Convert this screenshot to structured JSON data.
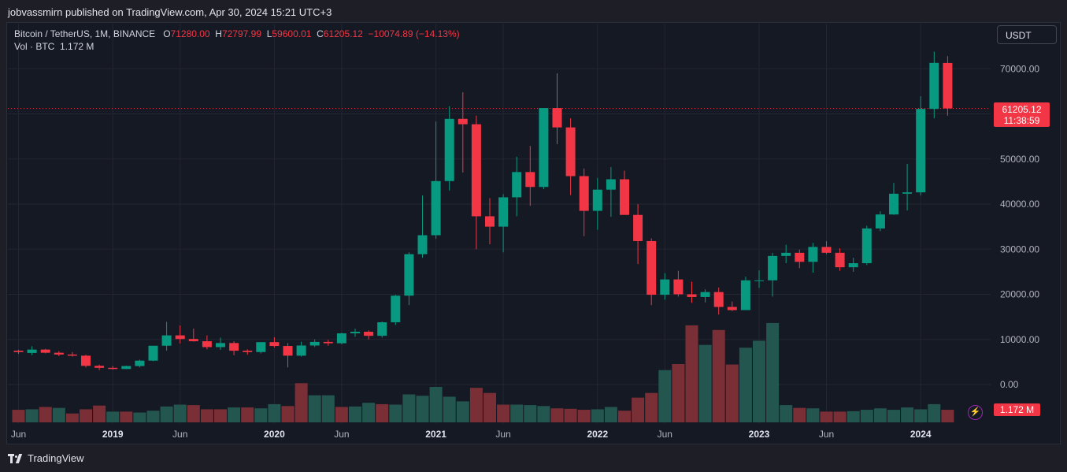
{
  "publisher": "jobvassmirn published on TradingView.com, Apr 30, 2024 15:21 UTC+3",
  "legend": {
    "symbol": "Bitcoin / TetherUS, 1M, BINANCE",
    "o_label": "O",
    "o": "71280.00",
    "h_label": "H",
    "h": "72797.99",
    "l_label": "L",
    "l": "59600.01",
    "c_label": "C",
    "c": "61205.12",
    "change": "−10074.89 (−14.13%)",
    "vol_label": "Vol · BTC",
    "vol": "1.172 M"
  },
  "currency_button": "USDT",
  "last_price": {
    "price": "61205.12",
    "countdown": "11:38:59"
  },
  "volume_tag": "1.172 M",
  "footer": "TradingView",
  "colors": {
    "up": "#089981",
    "down": "#f23645",
    "volume_up": "#22564f",
    "volume_down": "#7a2e36",
    "grid": "#232631"
  },
  "chart_data": {
    "type": "candlestick",
    "title": "Bitcoin / TetherUS, 1M, BINANCE",
    "ylim": [
      -3000,
      78000
    ],
    "y_ticks": [
      {
        "value": 70000,
        "label": "70000.00"
      },
      {
        "value": 60000,
        "label": ""
      },
      {
        "value": 50000,
        "label": "50000.00"
      },
      {
        "value": 40000,
        "label": "40000.00"
      },
      {
        "value": 30000,
        "label": "30000.00"
      },
      {
        "value": 20000,
        "label": "20000.00"
      },
      {
        "value": 10000,
        "label": "10000.00"
      },
      {
        "value": 0,
        "label": "0.00"
      }
    ],
    "x_ticks": [
      {
        "index": 0,
        "label": "Jun",
        "bold": false
      },
      {
        "index": 7,
        "label": "2019",
        "bold": true
      },
      {
        "index": 12,
        "label": "Jun",
        "bold": false
      },
      {
        "index": 19,
        "label": "2020",
        "bold": true
      },
      {
        "index": 24,
        "label": "Jun",
        "bold": false
      },
      {
        "index": 31,
        "label": "2021",
        "bold": true
      },
      {
        "index": 36,
        "label": "Jun",
        "bold": false
      },
      {
        "index": 43,
        "label": "2022",
        "bold": true
      },
      {
        "index": 48,
        "label": "Jun",
        "bold": false
      },
      {
        "index": 55,
        "label": "2023",
        "bold": true
      },
      {
        "index": 60,
        "label": "Jun",
        "bold": false
      },
      {
        "index": 67,
        "label": "2024",
        "bold": true
      }
    ],
    "candles": [
      {
        "o": 7500,
        "h": 7700,
        "l": 6800,
        "c": 7200
      },
      {
        "o": 7000,
        "h": 8500,
        "l": 6500,
        "c": 7750
      },
      {
        "o": 7750,
        "h": 7900,
        "l": 6900,
        "c": 7050
      },
      {
        "o": 7050,
        "h": 7400,
        "l": 6300,
        "c": 6650
      },
      {
        "o": 6650,
        "h": 7200,
        "l": 6200,
        "c": 6400
      },
      {
        "o": 6400,
        "h": 6600,
        "l": 3800,
        "c": 4150
      },
      {
        "o": 4150,
        "h": 4400,
        "l": 3200,
        "c": 3700
      },
      {
        "o": 3700,
        "h": 4100,
        "l": 3300,
        "c": 3450
      },
      {
        "o": 3450,
        "h": 4200,
        "l": 3400,
        "c": 4100
      },
      {
        "o": 4100,
        "h": 5500,
        "l": 3800,
        "c": 5300
      },
      {
        "o": 5300,
        "h": 8000,
        "l": 5200,
        "c": 8600
      },
      {
        "o": 8600,
        "h": 13900,
        "l": 7500,
        "c": 10900
      },
      {
        "o": 10900,
        "h": 13100,
        "l": 9100,
        "c": 10100
      },
      {
        "o": 10100,
        "h": 12400,
        "l": 9500,
        "c": 9600
      },
      {
        "o": 9600,
        "h": 10900,
        "l": 7800,
        "c": 8300
      },
      {
        "o": 8300,
        "h": 10400,
        "l": 7700,
        "c": 9200
      },
      {
        "o": 9200,
        "h": 9600,
        "l": 6500,
        "c": 7500
      },
      {
        "o": 7500,
        "h": 7800,
        "l": 6600,
        "c": 7200
      },
      {
        "o": 7200,
        "h": 9300,
        "l": 6900,
        "c": 9400
      },
      {
        "o": 9400,
        "h": 10500,
        "l": 8200,
        "c": 8550
      },
      {
        "o": 8550,
        "h": 9200,
        "l": 3800,
        "c": 6400
      },
      {
        "o": 6400,
        "h": 9500,
        "l": 6200,
        "c": 8650
      },
      {
        "o": 8650,
        "h": 10000,
        "l": 8300,
        "c": 9450
      },
      {
        "o": 9450,
        "h": 9900,
        "l": 8600,
        "c": 9150
      },
      {
        "o": 9150,
        "h": 11500,
        "l": 8900,
        "c": 11350
      },
      {
        "o": 11350,
        "h": 12400,
        "l": 10600,
        "c": 11700
      },
      {
        "o": 11700,
        "h": 12000,
        "l": 10000,
        "c": 10800
      },
      {
        "o": 10800,
        "h": 14000,
        "l": 10400,
        "c": 13800
      },
      {
        "o": 13800,
        "h": 19900,
        "l": 13200,
        "c": 19700
      },
      {
        "o": 19700,
        "h": 29300,
        "l": 17600,
        "c": 28900
      },
      {
        "o": 28900,
        "h": 41900,
        "l": 28100,
        "c": 33100
      },
      {
        "o": 33100,
        "h": 58300,
        "l": 32300,
        "c": 45100
      },
      {
        "o": 45100,
        "h": 61700,
        "l": 43000,
        "c": 58900
      },
      {
        "o": 58900,
        "h": 64800,
        "l": 47000,
        "c": 57700
      },
      {
        "o": 57700,
        "h": 59600,
        "l": 30000,
        "c": 37300
      },
      {
        "o": 37300,
        "h": 41300,
        "l": 31100,
        "c": 35000
      },
      {
        "o": 35000,
        "h": 42200,
        "l": 29300,
        "c": 41500
      },
      {
        "o": 41500,
        "h": 50500,
        "l": 37300,
        "c": 47100
      },
      {
        "o": 47100,
        "h": 52900,
        "l": 39600,
        "c": 43800
      },
      {
        "o": 43800,
        "h": 61000,
        "l": 43300,
        "c": 61300
      },
      {
        "o": 61300,
        "h": 69000,
        "l": 53300,
        "c": 57000
      },
      {
        "o": 57000,
        "h": 59000,
        "l": 42000,
        "c": 46200
      },
      {
        "o": 46200,
        "h": 47900,
        "l": 32900,
        "c": 38500
      },
      {
        "o": 38500,
        "h": 45800,
        "l": 34300,
        "c": 43200
      },
      {
        "o": 43200,
        "h": 48200,
        "l": 37200,
        "c": 45500
      },
      {
        "o": 45500,
        "h": 47400,
        "l": 37700,
        "c": 37600
      },
      {
        "o": 37600,
        "h": 40000,
        "l": 26700,
        "c": 31800
      },
      {
        "o": 31800,
        "h": 32400,
        "l": 17600,
        "c": 19900
      },
      {
        "o": 19900,
        "h": 24700,
        "l": 18800,
        "c": 23300
      },
      {
        "o": 23300,
        "h": 25200,
        "l": 19500,
        "c": 20000
      },
      {
        "o": 20000,
        "h": 22800,
        "l": 18100,
        "c": 19400
      },
      {
        "o": 19400,
        "h": 21100,
        "l": 18200,
        "c": 20500
      },
      {
        "o": 20500,
        "h": 21500,
        "l": 15500,
        "c": 17200
      },
      {
        "o": 17200,
        "h": 18400,
        "l": 16300,
        "c": 16500
      },
      {
        "o": 16500,
        "h": 23900,
        "l": 16500,
        "c": 23100
      },
      {
        "o": 23100,
        "h": 25300,
        "l": 21400,
        "c": 23100
      },
      {
        "o": 23100,
        "h": 29200,
        "l": 19500,
        "c": 28500
      },
      {
        "o": 28500,
        "h": 31000,
        "l": 26900,
        "c": 29200
      },
      {
        "o": 29200,
        "h": 29900,
        "l": 25800,
        "c": 27200
      },
      {
        "o": 27200,
        "h": 31400,
        "l": 24800,
        "c": 30500
      },
      {
        "o": 30500,
        "h": 31800,
        "l": 28900,
        "c": 29200
      },
      {
        "o": 29200,
        "h": 30200,
        "l": 25200,
        "c": 26000
      },
      {
        "o": 26000,
        "h": 28100,
        "l": 25000,
        "c": 26900
      },
      {
        "o": 26900,
        "h": 35200,
        "l": 26500,
        "c": 34600
      },
      {
        "o": 34600,
        "h": 38400,
        "l": 34000,
        "c": 37700
      },
      {
        "o": 37700,
        "h": 44700,
        "l": 37600,
        "c": 42300
      },
      {
        "o": 42300,
        "h": 48900,
        "l": 38600,
        "c": 42600
      },
      {
        "o": 42600,
        "h": 63900,
        "l": 41900,
        "c": 61100
      },
      {
        "o": 61100,
        "h": 73800,
        "l": 59000,
        "c": 71300
      },
      {
        "o": 71280,
        "h": 72798,
        "l": 59600,
        "c": 61205
      }
    ],
    "volumes": [
      {
        "v": 27,
        "up": false
      },
      {
        "v": 28,
        "up": true
      },
      {
        "v": 33,
        "up": false
      },
      {
        "v": 31,
        "up": true
      },
      {
        "v": 19,
        "up": false
      },
      {
        "v": 28,
        "up": false
      },
      {
        "v": 36,
        "up": false
      },
      {
        "v": 23,
        "up": true
      },
      {
        "v": 23,
        "up": false
      },
      {
        "v": 21,
        "up": true
      },
      {
        "v": 25,
        "up": true
      },
      {
        "v": 34,
        "up": true
      },
      {
        "v": 38,
        "up": true
      },
      {
        "v": 37,
        "up": false
      },
      {
        "v": 28,
        "up": false
      },
      {
        "v": 28,
        "up": false
      },
      {
        "v": 32,
        "up": true
      },
      {
        "v": 32,
        "up": false
      },
      {
        "v": 30,
        "up": true
      },
      {
        "v": 39,
        "up": true
      },
      {
        "v": 35,
        "up": false
      },
      {
        "v": 84,
        "up": false
      },
      {
        "v": 58,
        "up": true
      },
      {
        "v": 58,
        "up": true
      },
      {
        "v": 33,
        "up": false
      },
      {
        "v": 34,
        "up": true
      },
      {
        "v": 42,
        "up": true
      },
      {
        "v": 39,
        "up": false
      },
      {
        "v": 38,
        "up": true
      },
      {
        "v": 60,
        "up": true
      },
      {
        "v": 57,
        "up": true
      },
      {
        "v": 76,
        "up": true
      },
      {
        "v": 55,
        "up": true
      },
      {
        "v": 45,
        "up": true
      },
      {
        "v": 74,
        "up": false
      },
      {
        "v": 63,
        "up": false
      },
      {
        "v": 38,
        "up": false
      },
      {
        "v": 38,
        "up": true
      },
      {
        "v": 37,
        "up": true
      },
      {
        "v": 35,
        "up": true
      },
      {
        "v": 30,
        "up": false
      },
      {
        "v": 29,
        "up": false
      },
      {
        "v": 27,
        "up": false
      },
      {
        "v": 28,
        "up": true
      },
      {
        "v": 33,
        "up": true
      },
      {
        "v": 25,
        "up": false
      },
      {
        "v": 53,
        "up": false
      },
      {
        "v": 63,
        "up": false
      },
      {
        "v": 112,
        "up": true
      },
      {
        "v": 125,
        "up": false
      },
      {
        "v": 208,
        "up": false
      },
      {
        "v": 166,
        "up": true
      },
      {
        "v": 198,
        "up": false
      },
      {
        "v": 124,
        "up": false
      },
      {
        "v": 160,
        "up": true
      },
      {
        "v": 175,
        "up": true
      },
      {
        "v": 213,
        "up": true
      },
      {
        "v": 37,
        "up": true
      },
      {
        "v": 31,
        "up": false
      },
      {
        "v": 30,
        "up": true
      },
      {
        "v": 23,
        "up": false
      },
      {
        "v": 23,
        "up": false
      },
      {
        "v": 24,
        "up": true
      },
      {
        "v": 27,
        "up": true
      },
      {
        "v": 30,
        "up": true
      },
      {
        "v": 27,
        "up": true
      },
      {
        "v": 32,
        "up": true
      },
      {
        "v": 28,
        "up": true
      },
      {
        "v": 39,
        "up": true
      },
      {
        "v": 27,
        "up": false
      }
    ]
  }
}
